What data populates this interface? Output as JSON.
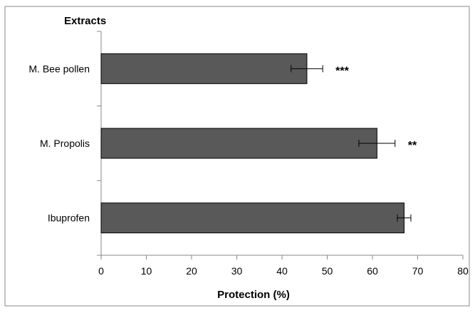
{
  "chart_data": {
    "type": "bar",
    "orientation": "horizontal",
    "title": "",
    "ylabel": "Extracts",
    "xlabel": "Protection (%)",
    "xlim": [
      0,
      80
    ],
    "xticks": [
      "0",
      "10",
      "20",
      "30",
      "40",
      "50",
      "60",
      "70",
      "80"
    ],
    "categories": [
      "M. Bee pollen",
      "M. Propolis",
      "Ibuprofen"
    ],
    "values": [
      45.5,
      61.0,
      67.0
    ],
    "errors": [
      3.5,
      4.0,
      1.5
    ],
    "significance": [
      "***",
      "**",
      ""
    ],
    "bar_color": "#595959",
    "grid": false,
    "legend": "none"
  }
}
